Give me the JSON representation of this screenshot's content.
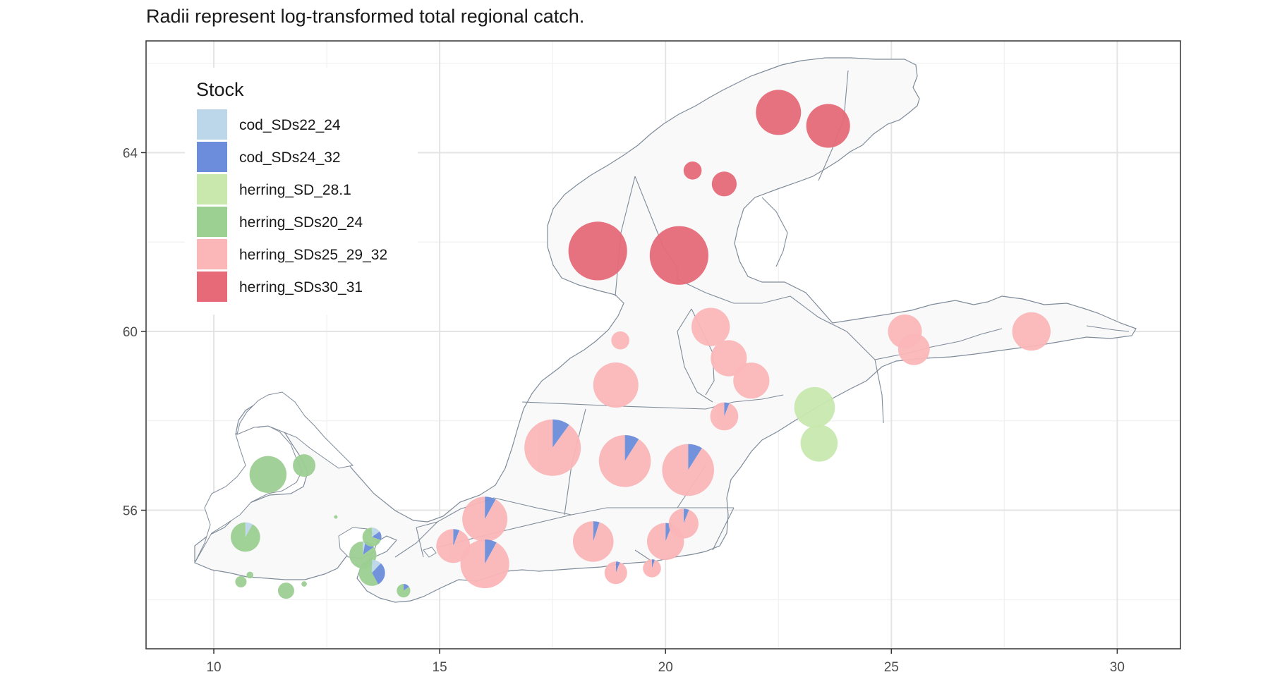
{
  "title": "Radii represent log-transformed total regional catch.",
  "legend": {
    "title": "Stock",
    "items": [
      {
        "label": "cod_SDs22_24",
        "color": "#bcd7ea"
      },
      {
        "label": "cod_SDs24_32",
        "color": "#6b8ddb"
      },
      {
        "label": "herring_SD_28.1",
        "color": "#c8e8ae"
      },
      {
        "label": "herring_SDs20_24",
        "color": "#9ccf92"
      },
      {
        "label": "herring_SDs25_29_32",
        "color": "#fbb6b8"
      },
      {
        "label": "herring_SDs30_31",
        "color": "#e66a78"
      }
    ]
  },
  "axes": {
    "x_ticks": [
      "10",
      "15",
      "20",
      "25",
      "30"
    ],
    "y_ticks": [
      "56",
      "60",
      "64"
    ],
    "x_range": [
      8.5,
      31.4
    ],
    "y_range": [
      52.9,
      66.5
    ],
    "grid": true
  },
  "chart_data": {
    "type": "pie-map",
    "stocks": [
      "cod_SDs22_24",
      "cod_SDs24_32",
      "herring_SD_28.1",
      "herring_SDs20_24",
      "herring_SDs25_29_32",
      "herring_SDs30_31"
    ],
    "note_radius": "log-transformed total regional catch",
    "pies": [
      {
        "lon": 22.5,
        "lat": 64.9,
        "size": 1.0,
        "shares": {
          "herring_SDs30_31": 1.0
        }
      },
      {
        "lon": 23.6,
        "lat": 64.6,
        "size": 0.97,
        "shares": {
          "herring_SDs30_31": 1.0
        }
      },
      {
        "lon": 20.6,
        "lat": 63.6,
        "size": 0.4,
        "shares": {
          "herring_SDs30_31": 1.0
        }
      },
      {
        "lon": 21.3,
        "lat": 63.3,
        "size": 0.55,
        "shares": {
          "herring_SDs30_31": 1.0
        }
      },
      {
        "lon": 18.5,
        "lat": 61.8,
        "size": 1.3,
        "shares": {
          "herring_SDs30_31": 1.0
        }
      },
      {
        "lon": 20.3,
        "lat": 61.7,
        "size": 1.3,
        "shares": {
          "herring_SDs30_31": 1.0
        }
      },
      {
        "lon": 21.0,
        "lat": 60.1,
        "size": 0.85,
        "shares": {
          "herring_SDs25_29_32": 1.0
        }
      },
      {
        "lon": 19.0,
        "lat": 59.8,
        "size": 0.4,
        "shares": {
          "herring_SDs25_29_32": 1.0
        }
      },
      {
        "lon": 21.4,
        "lat": 59.4,
        "size": 0.8,
        "shares": {
          "herring_SDs25_29_32": 1.0
        }
      },
      {
        "lon": 21.9,
        "lat": 58.9,
        "size": 0.8,
        "shares": {
          "herring_SDs25_29_32": 1.0
        }
      },
      {
        "lon": 18.9,
        "lat": 58.8,
        "size": 1.0,
        "shares": {
          "herring_SDs25_29_32": 1.0
        }
      },
      {
        "lon": 25.3,
        "lat": 60.0,
        "size": 0.75,
        "shares": {
          "herring_SDs25_29_32": 1.0
        }
      },
      {
        "lon": 25.5,
        "lat": 59.6,
        "size": 0.7,
        "shares": {
          "herring_SDs25_29_32": 1.0
        }
      },
      {
        "lon": 28.1,
        "lat": 60.0,
        "size": 0.85,
        "shares": {
          "herring_SDs25_29_32": 1.0
        }
      },
      {
        "lon": 21.3,
        "lat": 58.1,
        "size": 0.62,
        "shares": {
          "cod_SDs24_32": 0.06,
          "herring_SDs25_29_32": 0.94
        }
      },
      {
        "lon": 23.3,
        "lat": 58.3,
        "size": 0.9,
        "shares": {
          "herring_SD_28.1": 1.0
        }
      },
      {
        "lon": 23.4,
        "lat": 57.5,
        "size": 0.82,
        "shares": {
          "herring_SD_28.1": 1.0
        }
      },
      {
        "lon": 17.5,
        "lat": 57.4,
        "size": 1.25,
        "shares": {
          "cod_SDs24_32": 0.1,
          "herring_SDs25_29_32": 0.9
        }
      },
      {
        "lon": 19.1,
        "lat": 57.1,
        "size": 1.15,
        "shares": {
          "cod_SDs24_32": 0.09,
          "herring_SDs25_29_32": 0.91
        }
      },
      {
        "lon": 20.5,
        "lat": 56.9,
        "size": 1.15,
        "shares": {
          "cod_SDs24_32": 0.09,
          "herring_SDs25_29_32": 0.91
        }
      },
      {
        "lon": 11.2,
        "lat": 56.8,
        "size": 0.82,
        "shares": {
          "herring_SDs20_24": 1.0
        }
      },
      {
        "lon": 12.0,
        "lat": 57.0,
        "size": 0.5,
        "shares": {
          "herring_SDs20_24": 1.0
        }
      },
      {
        "lon": 16.0,
        "lat": 55.8,
        "size": 1.0,
        "shares": {
          "cod_SDs24_32": 0.08,
          "herring_SDs25_29_32": 0.92
        }
      },
      {
        "lon": 15.3,
        "lat": 55.2,
        "size": 0.75,
        "shares": {
          "cod_SDs24_32": 0.06,
          "herring_SDs25_29_32": 0.94
        }
      },
      {
        "lon": 16.0,
        "lat": 54.8,
        "size": 1.08,
        "shares": {
          "cod_SDs24_32": 0.08,
          "herring_SDs25_29_32": 0.92
        }
      },
      {
        "lon": 18.4,
        "lat": 55.3,
        "size": 0.9,
        "shares": {
          "cod_SDs24_32": 0.05,
          "herring_SDs25_29_32": 0.95
        }
      },
      {
        "lon": 20.0,
        "lat": 55.3,
        "size": 0.82,
        "shares": {
          "cod_SDs24_32": 0.06,
          "herring_SDs25_29_32": 0.94
        }
      },
      {
        "lon": 20.4,
        "lat": 55.7,
        "size": 0.66,
        "shares": {
          "cod_SDs24_32": 0.06,
          "herring_SDs25_29_32": 0.94
        }
      },
      {
        "lon": 18.9,
        "lat": 54.6,
        "size": 0.5,
        "shares": {
          "cod_SDs24_32": 0.06,
          "herring_SDs25_29_32": 0.94
        }
      },
      {
        "lon": 19.7,
        "lat": 54.7,
        "size": 0.4,
        "shares": {
          "cod_SDs24_32": 0.05,
          "herring_SDs25_29_32": 0.95
        }
      },
      {
        "lon": 10.7,
        "lat": 55.4,
        "size": 0.65,
        "shares": {
          "cod_SDs22_24": 0.08,
          "herring_SDs20_24": 0.92
        }
      },
      {
        "lon": 13.3,
        "lat": 55.0,
        "size": 0.6,
        "shares": {
          "cod_SDs22_24": 0.03,
          "cod_SDs24_32": 0.12,
          "herring_SDs20_24": 0.85
        }
      },
      {
        "lon": 13.5,
        "lat": 55.4,
        "size": 0.42,
        "shares": {
          "cod_SDs22_24": 0.15,
          "cod_SDs24_32": 0.15,
          "herring_SDs20_24": 0.7
        }
      },
      {
        "lon": 13.5,
        "lat": 54.6,
        "size": 0.58,
        "shares": {
          "cod_SDs22_24": 0.12,
          "cod_SDs24_32": 0.3,
          "herring_SDs20_24": 0.58
        }
      },
      {
        "lon": 14.2,
        "lat": 54.2,
        "size": 0.3,
        "shares": {
          "cod_SDs24_32": 0.15,
          "herring_SDs20_24": 0.85
        }
      },
      {
        "lon": 11.6,
        "lat": 54.2,
        "size": 0.36,
        "shares": {
          "herring_SDs20_24": 1.0
        }
      },
      {
        "lon": 10.6,
        "lat": 54.4,
        "size": 0.25,
        "shares": {
          "herring_SDs20_24": 1.0
        }
      },
      {
        "lon": 10.8,
        "lat": 54.55,
        "size": 0.15,
        "shares": {
          "herring_SDs20_24": 1.0
        }
      },
      {
        "lon": 12.0,
        "lat": 54.35,
        "size": 0.12,
        "shares": {
          "herring_SDs20_24": 1.0
        }
      },
      {
        "lon": 12.7,
        "lat": 55.85,
        "size": 0.08,
        "shares": {
          "herring_SDs20_24": 1.0
        }
      }
    ]
  }
}
